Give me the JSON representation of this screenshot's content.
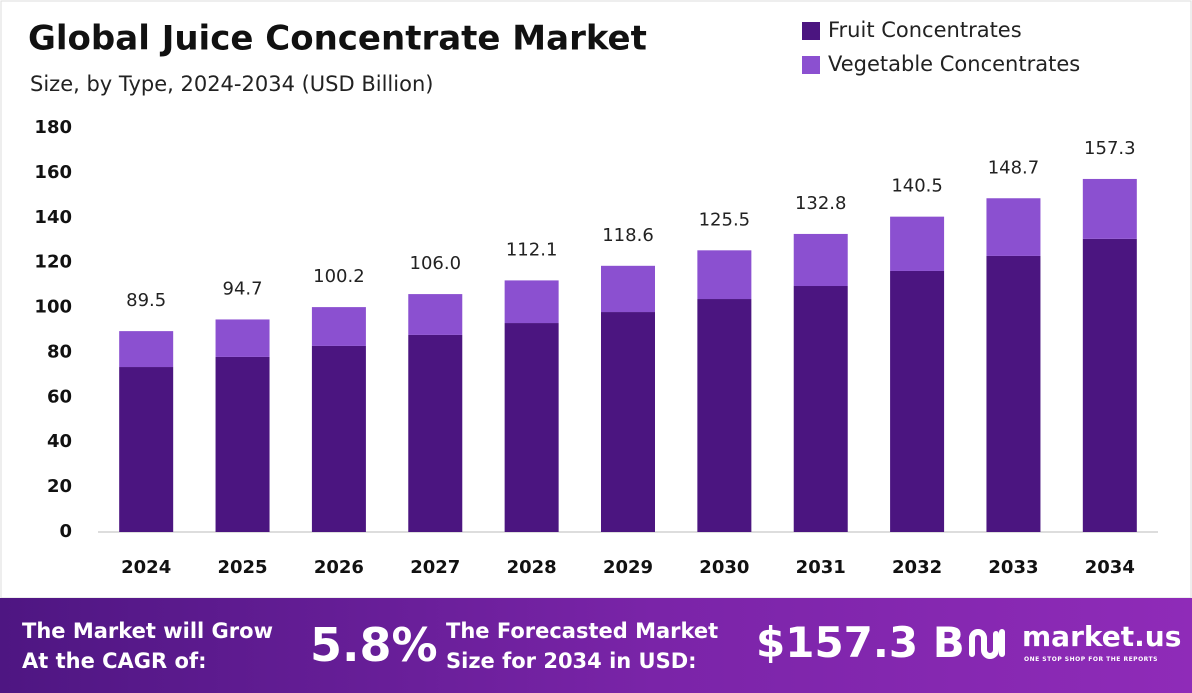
{
  "chart_data": {
    "type": "stacked_bar",
    "title": "Global Juice Concentrate Market",
    "subtitle": "Size, by Type, 2024-2034 (USD Billion)",
    "categories": [
      "2024",
      "2025",
      "2026",
      "2027",
      "2028",
      "2029",
      "2030",
      "2031",
      "2032",
      "2033",
      "2034"
    ],
    "series": [
      {
        "name": "Fruit Concentrates",
        "color": "#4b1580",
        "values": [
          73.5,
          78.0,
          82.9,
          87.8,
          93.1,
          98.0,
          103.8,
          109.6,
          116.3,
          123.0,
          130.6
        ]
      },
      {
        "name": "Vegetable Concentrates",
        "color": "#8b50d0",
        "values": [
          16.0,
          16.7,
          17.3,
          18.2,
          19.0,
          20.6,
          21.7,
          23.2,
          24.2,
          25.7,
          26.7
        ]
      }
    ],
    "totals": [
      89.5,
      94.7,
      100.2,
      {
        "value": 106.0,
        "label": "106.0"
      },
      112.1,
      118.6,
      125.5,
      132.8,
      140.5,
      148.7,
      157.3
    ],
    "ylim": [
      0,
      180
    ],
    "yticks": [
      0,
      20,
      40,
      60,
      80,
      100,
      120,
      140,
      160,
      180
    ],
    "legend": "top-right"
  },
  "footer": {
    "cagr_text": "The Market will Grow At the CAGR of:",
    "cagr_value": "5.8%",
    "forecast_text": "The Forecasted Market Size for 2034 in USD:",
    "forecast_value": "$157.3 B",
    "brand": "market.us",
    "tagline": "ONE STOP SHOP FOR THE REPORTS"
  }
}
